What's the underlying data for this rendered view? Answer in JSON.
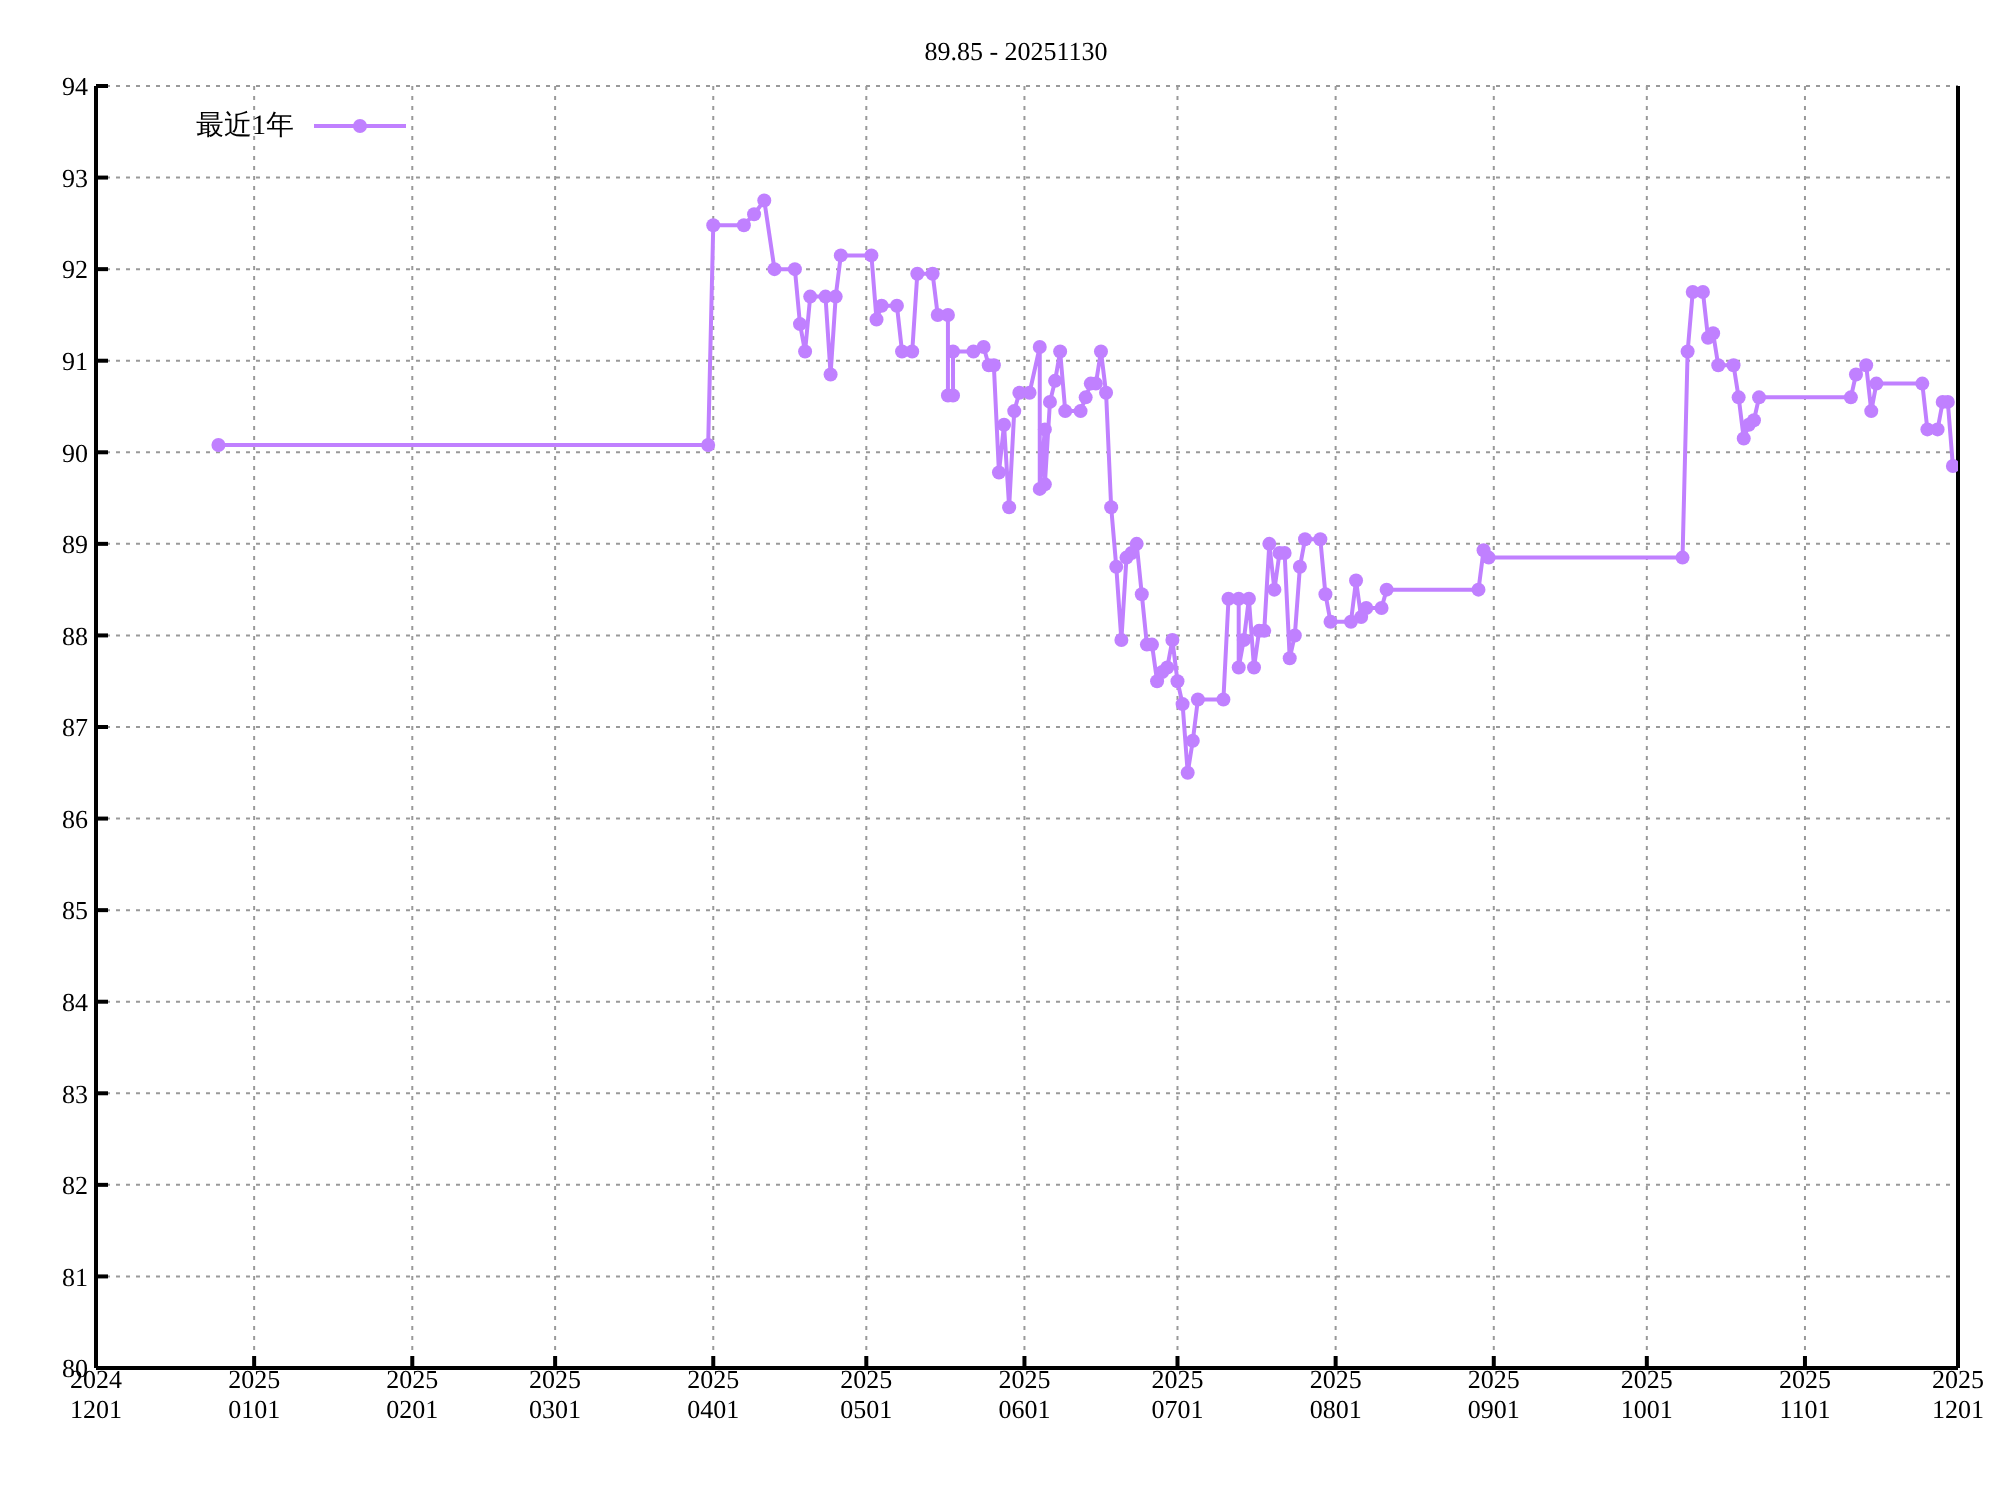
{
  "chart_data": {
    "type": "line",
    "title": "89.85 - 20251130",
    "x": [
      "2024-12-25",
      "2025-03-31",
      "2025-04-01",
      "2025-04-07",
      "2025-04-09",
      "2025-04-11",
      "2025-04-13",
      "2025-04-17",
      "2025-04-18",
      "2025-04-19",
      "2025-04-20",
      "2025-04-23",
      "2025-04-24",
      "2025-04-25",
      "2025-04-26",
      "2025-05-02",
      "2025-05-03",
      "2025-05-04",
      "2025-05-07",
      "2025-05-08",
      "2025-05-10",
      "2025-05-11",
      "2025-05-14",
      "2025-05-15",
      "2025-05-17",
      "2025-05-17",
      "2025-05-18",
      "2025-05-18",
      "2025-05-22",
      "2025-05-24",
      "2025-05-25",
      "2025-05-26",
      "2025-05-27",
      "2025-05-28",
      "2025-05-29",
      "2025-05-30",
      "2025-05-31",
      "2025-06-02",
      "2025-06-04",
      "2025-06-04",
      "2025-06-05",
      "2025-06-05",
      "2025-06-06",
      "2025-06-07",
      "2025-06-08",
      "2025-06-09",
      "2025-06-12",
      "2025-06-13",
      "2025-06-14",
      "2025-06-15",
      "2025-06-16",
      "2025-06-17",
      "2025-06-18",
      "2025-06-19",
      "2025-06-20",
      "2025-06-21",
      "2025-06-22",
      "2025-06-23",
      "2025-06-24",
      "2025-06-25",
      "2025-06-26",
      "2025-06-27",
      "2025-06-28",
      "2025-06-29",
      "2025-06-30",
      "2025-07-01",
      "2025-07-02",
      "2025-07-03",
      "2025-07-04",
      "2025-07-05",
      "2025-07-10",
      "2025-07-11",
      "2025-07-13",
      "2025-07-13",
      "2025-07-14",
      "2025-07-15",
      "2025-07-16",
      "2025-07-17",
      "2025-07-18",
      "2025-07-19",
      "2025-07-20",
      "2025-07-21",
      "2025-07-22",
      "2025-07-23",
      "2025-07-24",
      "2025-07-25",
      "2025-07-26",
      "2025-07-29",
      "2025-07-30",
      "2025-07-31",
      "2025-08-04",
      "2025-08-05",
      "2025-08-06",
      "2025-08-07",
      "2025-08-10",
      "2025-08-11",
      "2025-08-29",
      "2025-08-30",
      "2025-08-31",
      "2025-10-08",
      "2025-10-09",
      "2025-10-10",
      "2025-10-12",
      "2025-10-13",
      "2025-10-14",
      "2025-10-15",
      "2025-10-18",
      "2025-10-19",
      "2025-10-20",
      "2025-10-21",
      "2025-10-22",
      "2025-10-23",
      "2025-11-10",
      "2025-11-11",
      "2025-11-13",
      "2025-11-14",
      "2025-11-15",
      "2025-11-24",
      "2025-11-25",
      "2025-11-27",
      "2025-11-28",
      "2025-11-29",
      "2025-11-30"
    ],
    "series": [
      {
        "name": "最近1年",
        "color": "#c080ff",
        "values": [
          90.08,
          90.08,
          92.48,
          92.48,
          92.6,
          92.75,
          92.0,
          92.0,
          91.4,
          91.1,
          91.7,
          91.7,
          90.85,
          91.7,
          92.15,
          92.15,
          91.45,
          91.6,
          91.6,
          91.1,
          91.1,
          91.95,
          91.95,
          91.5,
          91.5,
          90.62,
          90.62,
          91.1,
          91.1,
          91.15,
          90.95,
          90.95,
          89.78,
          90.3,
          89.4,
          90.45,
          90.65,
          90.65,
          91.15,
          89.6,
          90.25,
          89.65,
          90.55,
          90.78,
          91.1,
          90.45,
          90.45,
          90.6,
          90.75,
          90.75,
          91.1,
          90.65,
          89.4,
          88.75,
          87.95,
          88.85,
          88.9,
          89.0,
          88.45,
          87.9,
          87.9,
          87.5,
          87.6,
          87.65,
          87.95,
          87.5,
          87.25,
          86.5,
          86.85,
          87.3,
          87.3,
          88.4,
          88.4,
          87.65,
          87.95,
          88.4,
          87.65,
          88.05,
          88.05,
          89.0,
          88.5,
          88.9,
          88.9,
          87.75,
          88.0,
          88.75,
          89.05,
          89.05,
          88.45,
          88.15,
          88.15,
          88.6,
          88.2,
          88.3,
          88.3,
          88.5,
          88.5,
          88.93,
          88.85,
          88.85,
          91.1,
          91.75,
          91.75,
          91.25,
          91.3,
          90.95,
          90.95,
          90.6,
          90.15,
          90.3,
          90.35,
          90.6,
          90.6,
          90.85,
          90.95,
          90.45,
          90.75,
          90.75,
          90.25,
          90.25,
          90.55,
          90.55,
          89.85
        ]
      }
    ],
    "xlim": [
      "2024-12-01",
      "2025-12-01"
    ],
    "xticks": [
      {
        "value": "2024-12-01",
        "label": "2024\n1201"
      },
      {
        "value": "2025-01-01",
        "label": "2025\n0101"
      },
      {
        "value": "2025-02-01",
        "label": "2025\n0201"
      },
      {
        "value": "2025-03-01",
        "label": "2025\n0301"
      },
      {
        "value": "2025-04-01",
        "label": "2025\n0401"
      },
      {
        "value": "2025-05-01",
        "label": "2025\n0501"
      },
      {
        "value": "2025-06-01",
        "label": "2025\n0601"
      },
      {
        "value": "2025-07-01",
        "label": "2025\n0701"
      },
      {
        "value": "2025-08-01",
        "label": "2025\n0801"
      },
      {
        "value": "2025-09-01",
        "label": "2025\n0901"
      },
      {
        "value": "2025-10-01",
        "label": "2025\n1001"
      },
      {
        "value": "2025-11-01",
        "label": "2025\n1101"
      },
      {
        "value": "2025-12-01",
        "label": "2025\n1201"
      }
    ],
    "ylim": [
      80,
      94
    ],
    "yticks": [
      80,
      81,
      82,
      83,
      84,
      85,
      86,
      87,
      88,
      89,
      90,
      91,
      92,
      93,
      94
    ],
    "grid": true,
    "legend": "top left",
    "marker": "circle",
    "line_style": "solid"
  }
}
